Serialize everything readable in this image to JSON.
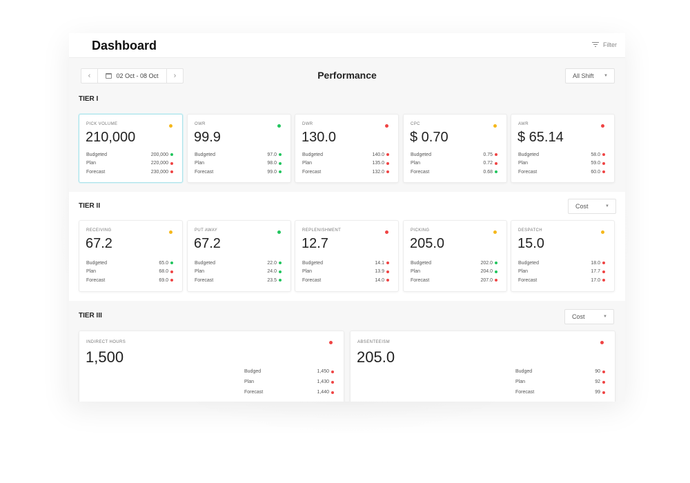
{
  "app": {
    "title": "Dashboard",
    "filter_label": "Filter"
  },
  "toolbar": {
    "date_range": "02 Oct - 08 Oct",
    "center_title": "Performance",
    "shift_select": "All Shift"
  },
  "colors": {
    "yellow": "#f5b81c",
    "green": "#22c55e",
    "red": "#ef4444",
    "selected_border": "#aee3ea"
  },
  "tiers": [
    {
      "label": "TIER I",
      "cards": [
        {
          "label": "PICK VOLUME",
          "value": "210,000",
          "status": "yellow",
          "selected": true,
          "rows": [
            {
              "label": "Budgeted",
              "value": "200,000",
              "status": "green"
            },
            {
              "label": "Plan",
              "value": "220,000",
              "status": "red"
            },
            {
              "label": "Forecast",
              "value": "230,000",
              "status": "red"
            }
          ]
        },
        {
          "label": "OWR",
          "value": "99.9",
          "status": "green",
          "rows": [
            {
              "label": "Budgeted",
              "value": "97.0",
              "status": "green"
            },
            {
              "label": "Plan",
              "value": "98.0",
              "status": "green"
            },
            {
              "label": "Forecast",
              "value": "99.0",
              "status": "green"
            }
          ]
        },
        {
          "label": "DWR",
          "value": "130.0",
          "status": "red",
          "rows": [
            {
              "label": "Budgeted",
              "value": "140.0",
              "status": "red"
            },
            {
              "label": "Plan",
              "value": "135.0",
              "status": "red"
            },
            {
              "label": "Forecast",
              "value": "132.0",
              "status": "red"
            }
          ]
        },
        {
          "label": "CPC",
          "value": "$ 0.70",
          "status": "yellow",
          "rows": [
            {
              "label": "Budgeted",
              "value": "0.75",
              "status": "red"
            },
            {
              "label": "Plan",
              "value": "0.72",
              "status": "red"
            },
            {
              "label": "Forecast",
              "value": "0.68",
              "status": "green"
            }
          ]
        },
        {
          "label": "AWR",
          "value": "$ 65.14",
          "status": "red",
          "rows": [
            {
              "label": "Budgeted",
              "value": "58.0",
              "status": "red"
            },
            {
              "label": "Plan",
              "value": "59.0",
              "status": "red"
            },
            {
              "label": "Forecast",
              "value": "60.0",
              "status": "red"
            }
          ]
        }
      ]
    },
    {
      "label": "TIER II",
      "select": "Cost",
      "cards": [
        {
          "label": "RECEIVING",
          "value": "67.2",
          "status": "yellow",
          "rows": [
            {
              "label": "Budgeted",
              "value": "65.0",
              "status": "green"
            },
            {
              "label": "Plan",
              "value": "68.0",
              "status": "red"
            },
            {
              "label": "Forecast",
              "value": "69.0",
              "status": "red"
            }
          ]
        },
        {
          "label": "PUT AWAY",
          "value": "67.2",
          "status": "green",
          "rows": [
            {
              "label": "Budgeted",
              "value": "22.0",
              "status": "green"
            },
            {
              "label": "Plan",
              "value": "24.0",
              "status": "green"
            },
            {
              "label": "Forecast",
              "value": "23.5",
              "status": "green"
            }
          ]
        },
        {
          "label": "REPLENISHMENT",
          "value": "12.7",
          "status": "red",
          "rows": [
            {
              "label": "Budgeted",
              "value": "14.1",
              "status": "red"
            },
            {
              "label": "Plan",
              "value": "13.9",
              "status": "red"
            },
            {
              "label": "Forecast",
              "value": "14.0",
              "status": "red"
            }
          ]
        },
        {
          "label": "PICKING",
          "value": "205.0",
          "status": "yellow",
          "rows": [
            {
              "label": "Budgeted",
              "value": "202.0",
              "status": "green"
            },
            {
              "label": "Plan",
              "value": "204.0",
              "status": "green"
            },
            {
              "label": "Forecast",
              "value": "207.0",
              "status": "red"
            }
          ]
        },
        {
          "label": "DESPATCH",
          "value": "15.0",
          "status": "yellow",
          "rows": [
            {
              "label": "Budgeted",
              "value": "18.0",
              "status": "red"
            },
            {
              "label": "Plan",
              "value": "17.7",
              "status": "red"
            },
            {
              "label": "Forecast",
              "value": "17.0",
              "status": "red"
            }
          ]
        }
      ]
    },
    {
      "label": "TIER III",
      "select": "Cost",
      "cards": [
        {
          "label": "INDIRECT HOURS",
          "value": "1,500",
          "status": "red",
          "rows": [
            {
              "label": "Budged",
              "value": "1,450",
              "status": "red"
            },
            {
              "label": "Plan",
              "value": "1,430",
              "status": "red"
            },
            {
              "label": "Forecast",
              "value": "1,440",
              "status": "red"
            }
          ]
        },
        {
          "label": "ABSENTEEISM",
          "value": "205.0",
          "status": "red",
          "rows": [
            {
              "label": "Budged",
              "value": "90",
              "status": "red"
            },
            {
              "label": "Plan",
              "value": "92",
              "status": "red"
            },
            {
              "label": "Forecast",
              "value": "99",
              "status": "red"
            }
          ]
        }
      ]
    }
  ]
}
